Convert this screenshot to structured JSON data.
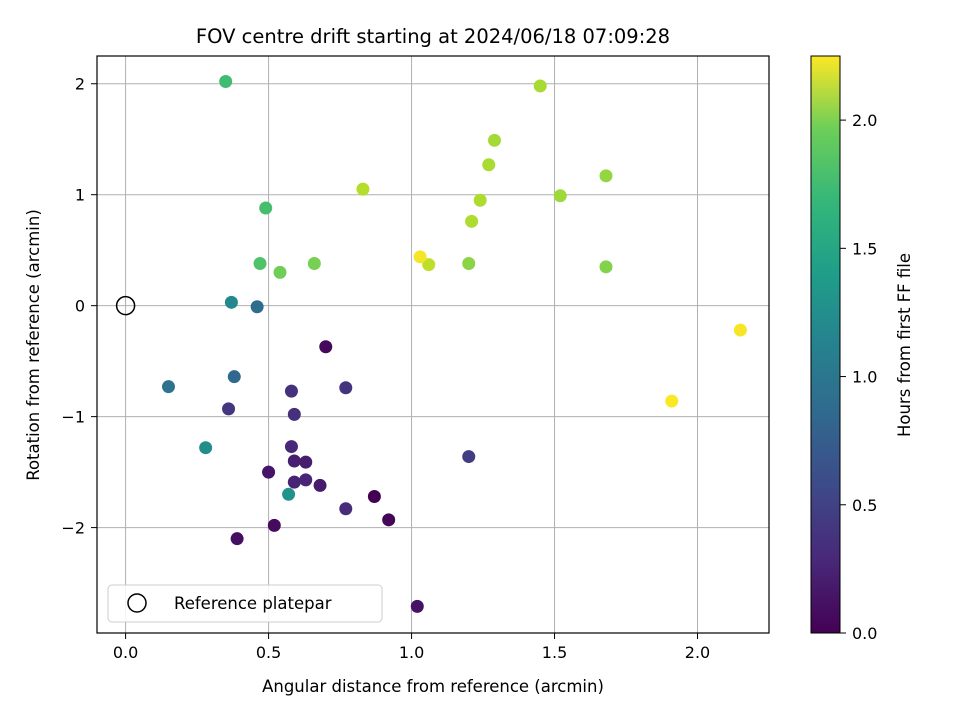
{
  "chart_data": {
    "type": "scatter",
    "title": "FOV centre drift starting at 2024/06/18 07:09:28",
    "xlabel": "Angular distance from reference (arcmin)",
    "ylabel": "Rotation from reference (arcmin)",
    "xlim": [
      -0.1,
      2.25
    ],
    "ylim": [
      -2.95,
      2.25
    ],
    "xticks": [
      0.0,
      0.5,
      1.0,
      1.5,
      2.0
    ],
    "xtick_labels": [
      "0.0",
      "0.5",
      "1.0",
      "1.5",
      "2.0"
    ],
    "yticks": [
      -2,
      -1,
      0,
      1,
      2
    ],
    "ytick_labels": [
      "−2",
      "−1",
      "0",
      "1",
      "2"
    ],
    "grid": true,
    "colormap": "viridis",
    "colorbar": {
      "label": "Hours from first FF file",
      "range": [
        0.0,
        2.25
      ],
      "ticks": [
        0.0,
        0.5,
        1.0,
        1.5,
        2.0
      ],
      "tick_labels": [
        "0.0",
        "0.5",
        "1.0",
        "1.5",
        "2.0"
      ]
    },
    "legend": {
      "location": "lower-left",
      "entries": [
        "Reference platepar"
      ]
    },
    "reference_point": {
      "x": 0.0,
      "y": 0.0
    },
    "points": [
      {
        "x": 0.87,
        "y": -1.72,
        "hours": 0.0
      },
      {
        "x": 0.92,
        "y": -1.93,
        "hours": 0.03
      },
      {
        "x": 0.7,
        "y": -0.37,
        "hours": 0.05
      },
      {
        "x": 0.52,
        "y": -1.98,
        "hours": 0.07
      },
      {
        "x": 0.39,
        "y": -2.1,
        "hours": 0.09
      },
      {
        "x": 1.02,
        "y": -2.71,
        "hours": 0.11
      },
      {
        "x": 0.5,
        "y": -1.5,
        "hours": 0.13
      },
      {
        "x": 0.68,
        "y": -1.62,
        "hours": 0.16
      },
      {
        "x": 0.63,
        "y": -1.41,
        "hours": 0.18
      },
      {
        "x": 0.59,
        "y": -1.4,
        "hours": 0.2
      },
      {
        "x": 0.59,
        "y": -1.59,
        "hours": 0.22
      },
      {
        "x": 0.63,
        "y": -1.57,
        "hours": 0.24
      },
      {
        "x": 0.58,
        "y": -1.27,
        "hours": 0.26
      },
      {
        "x": 0.77,
        "y": -1.83,
        "hours": 0.28
      },
      {
        "x": 0.59,
        "y": -0.98,
        "hours": 0.3
      },
      {
        "x": 0.58,
        "y": -0.77,
        "hours": 0.32
      },
      {
        "x": 0.77,
        "y": -0.74,
        "hours": 0.34
      },
      {
        "x": 0.36,
        "y": -0.93,
        "hours": 0.36
      },
      {
        "x": 1.2,
        "y": -1.36,
        "hours": 0.4
      },
      {
        "x": 0.38,
        "y": -0.64,
        "hours": 0.75
      },
      {
        "x": 0.46,
        "y": -0.01,
        "hours": 0.8
      },
      {
        "x": 0.15,
        "y": -0.73,
        "hours": 0.85
      },
      {
        "x": 0.37,
        "y": 0.03,
        "hours": 1.05
      },
      {
        "x": 0.28,
        "y": -1.28,
        "hours": 1.1
      },
      {
        "x": 0.57,
        "y": -1.7,
        "hours": 1.15
      },
      {
        "x": 0.35,
        "y": 2.02,
        "hours": 1.55
      },
      {
        "x": 0.49,
        "y": 0.88,
        "hours": 1.58
      },
      {
        "x": 0.47,
        "y": 0.38,
        "hours": 1.62
      },
      {
        "x": 0.54,
        "y": 0.3,
        "hours": 1.75
      },
      {
        "x": 0.66,
        "y": 0.38,
        "hours": 1.78
      },
      {
        "x": 1.68,
        "y": 0.35,
        "hours": 1.82
      },
      {
        "x": 1.2,
        "y": 0.38,
        "hours": 1.85
      },
      {
        "x": 1.68,
        "y": 1.17,
        "hours": 1.88
      },
      {
        "x": 1.52,
        "y": 0.99,
        "hours": 1.92
      },
      {
        "x": 1.29,
        "y": 1.49,
        "hours": 1.94
      },
      {
        "x": 1.45,
        "y": 1.98,
        "hours": 1.95
      },
      {
        "x": 1.27,
        "y": 1.27,
        "hours": 1.96
      },
      {
        "x": 1.24,
        "y": 0.95,
        "hours": 1.97
      },
      {
        "x": 1.21,
        "y": 0.76,
        "hours": 1.98
      },
      {
        "x": 0.83,
        "y": 1.05,
        "hours": 2.0
      },
      {
        "x": 1.06,
        "y": 0.37,
        "hours": 2.03
      },
      {
        "x": 1.03,
        "y": 0.44,
        "hours": 2.22
      },
      {
        "x": 2.15,
        "y": -0.22,
        "hours": 2.23
      },
      {
        "x": 1.91,
        "y": -0.86,
        "hours": 2.24
      }
    ]
  }
}
